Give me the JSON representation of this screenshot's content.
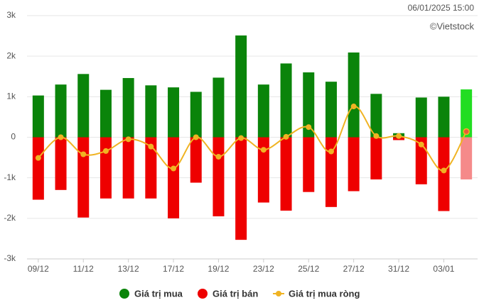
{
  "chart_data": {
    "type": "bar_line",
    "timestamp": "06/01/2025 15:00",
    "source": "©Vietstock",
    "categories": [
      "09/12",
      null,
      "11/12",
      null,
      "13/12",
      null,
      "17/12",
      null,
      "19/12",
      null,
      "23/12",
      null,
      "25/12",
      null,
      "27/12",
      null,
      "31/12",
      null,
      "03/01",
      null
    ],
    "series": [
      {
        "name": "Giá trị mua",
        "type": "bar",
        "color": "#0a840a",
        "last_color": "#22dd22",
        "values": [
          1030,
          1300,
          1560,
          1170,
          1460,
          1280,
          1230,
          1120,
          1470,
          2510,
          1300,
          1820,
          1600,
          1370,
          2090,
          1070,
          100,
          980,
          1000,
          1180
        ]
      },
      {
        "name": "Giá trị bán",
        "type": "bar",
        "color": "#ee0000",
        "last_color": "#f58a8a",
        "values": [
          -1540,
          -1300,
          -1980,
          -1510,
          -1510,
          -1510,
          -2000,
          -1120,
          -1950,
          -2530,
          -1610,
          -1810,
          -1350,
          -1720,
          -1330,
          -1040,
          -70,
          -1160,
          -1820,
          -1040
        ]
      },
      {
        "name": "Giá trị mua ròng",
        "type": "line",
        "color": "#f0b323",
        "last_color": "#e8583a",
        "values": [
          -510,
          0,
          -420,
          -340,
          -50,
          -230,
          -770,
          0,
          -480,
          -20,
          -310,
          10,
          250,
          -350,
          760,
          30,
          30,
          -180,
          -820,
          140
        ]
      }
    ],
    "ylim": [
      -3000,
      3000
    ],
    "yticks": [
      {
        "value": -3000,
        "label": "-3k"
      },
      {
        "value": -2000,
        "label": "-2k"
      },
      {
        "value": -1000,
        "label": "-1k"
      },
      0,
      {
        "value": 1000,
        "label": "1k"
      },
      {
        "value": 2000,
        "label": "2k"
      },
      {
        "value": 3000,
        "label": "3k"
      }
    ],
    "grid": true
  }
}
